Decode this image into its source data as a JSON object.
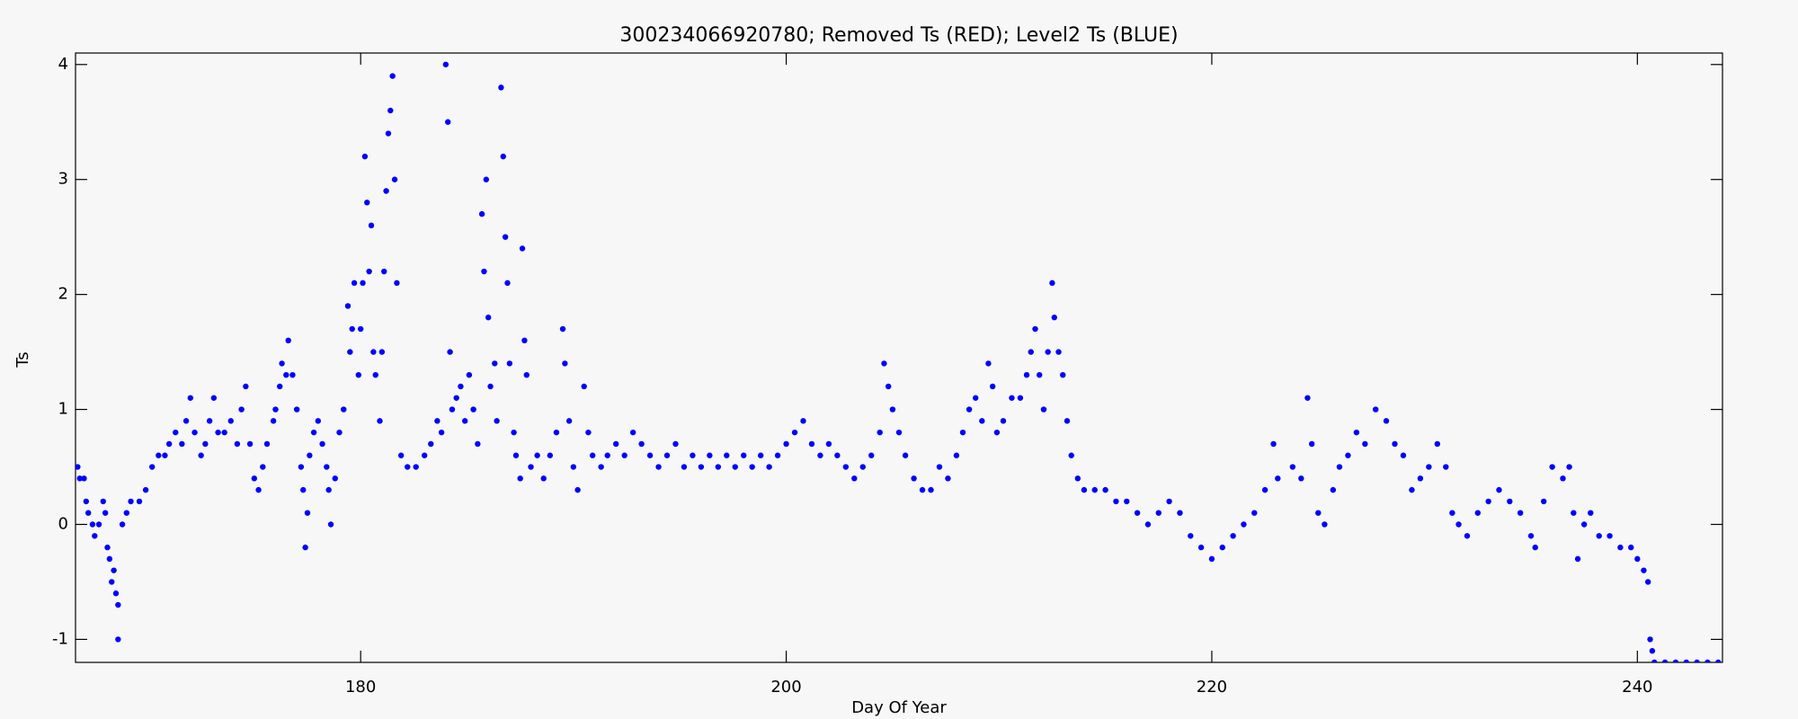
{
  "chart_data": {
    "type": "scatter",
    "title": "300234066920780; Removed Ts (RED); Level2 Ts (BLUE)",
    "x_label": "Day Of Year",
    "y_label": "Ts",
    "color": "#0000ff",
    "xlim": [
      166.6,
      244
    ],
    "ylim": [
      -1.2,
      4.1
    ],
    "xticks": [
      180,
      200,
      220,
      240
    ],
    "yticks": [
      -1,
      0,
      1,
      2,
      3,
      4
    ],
    "x": [
      166.7,
      166.8,
      167.0,
      167.1,
      167.2,
      167.4,
      167.5,
      167.7,
      167.9,
      168.0,
      168.1,
      168.2,
      168.3,
      168.4,
      168.5,
      168.6,
      168.6,
      168.8,
      169.0,
      169.2,
      169.6,
      169.9,
      170.2,
      170.5,
      170.8,
      171.0,
      171.3,
      171.6,
      171.8,
      172.0,
      172.2,
      172.5,
      172.7,
      172.9,
      173.1,
      173.3,
      173.6,
      173.9,
      174.2,
      174.4,
      174.6,
      174.8,
      175.0,
      175.2,
      175.4,
      175.6,
      175.9,
      176.0,
      176.2,
      176.3,
      176.5,
      176.6,
      176.8,
      177.0,
      177.2,
      177.3,
      177.4,
      177.5,
      177.6,
      177.8,
      178.0,
      178.2,
      178.4,
      178.5,
      178.6,
      178.8,
      179.0,
      179.2,
      179.4,
      179.5,
      179.6,
      179.7,
      179.9,
      180.0,
      180.1,
      180.2,
      180.3,
      180.4,
      180.5,
      180.6,
      180.7,
      180.9,
      181.0,
      181.1,
      181.2,
      181.3,
      181.4,
      181.5,
      181.6,
      181.7,
      181.9,
      182.2,
      182.6,
      183.0,
      183.3,
      183.6,
      183.8,
      184.0,
      184.1,
      184.2,
      184.3,
      184.5,
      184.7,
      184.9,
      185.1,
      185.3,
      185.5,
      185.7,
      185.8,
      185.9,
      186.0,
      186.1,
      186.3,
      186.4,
      186.6,
      186.7,
      186.8,
      186.9,
      187.0,
      187.2,
      187.3,
      187.5,
      187.6,
      187.7,
      187.8,
      188.0,
      188.3,
      188.6,
      188.9,
      189.2,
      189.5,
      189.6,
      189.8,
      190.0,
      190.2,
      190.5,
      190.7,
      190.9,
      191.3,
      191.6,
      192.0,
      192.4,
      192.8,
      193.2,
      193.6,
      194.0,
      194.4,
      194.8,
      195.2,
      195.6,
      196.0,
      196.4,
      196.8,
      197.2,
      197.6,
      198.0,
      198.4,
      198.8,
      199.2,
      199.6,
      200.0,
      200.4,
      200.8,
      201.2,
      201.6,
      202.0,
      202.4,
      202.8,
      203.2,
      203.6,
      204.0,
      204.4,
      204.6,
      204.8,
      205.0,
      205.3,
      205.6,
      206.0,
      206.4,
      206.8,
      207.2,
      207.6,
      208.0,
      208.3,
      208.6,
      208.9,
      209.2,
      209.5,
      209.7,
      209.9,
      210.2,
      210.6,
      211.0,
      211.3,
      211.5,
      211.7,
      211.9,
      212.1,
      212.3,
      212.5,
      212.6,
      212.8,
      213.0,
      213.2,
      213.4,
      213.7,
      214.0,
      214.5,
      215.0,
      215.5,
      216.0,
      216.5,
      217.0,
      217.5,
      218.0,
      218.5,
      219.0,
      219.5,
      220.0,
      220.5,
      221.0,
      221.5,
      222.0,
      222.5,
      222.9,
      223.1,
      223.8,
      224.2,
      224.5,
      224.7,
      225.0,
      225.3,
      225.7,
      226.0,
      226.4,
      226.8,
      227.2,
      227.7,
      228.2,
      228.6,
      229.0,
      229.4,
      229.8,
      230.2,
      230.6,
      231.0,
      231.3,
      231.6,
      232.0,
      232.5,
      233.0,
      233.5,
      234.0,
      234.5,
      235.0,
      235.2,
      235.6,
      236.0,
      236.5,
      236.8,
      237.0,
      237.2,
      237.5,
      237.8,
      238.2,
      238.7,
      239.2,
      239.7,
      240.0,
      240.3,
      240.5,
      240.6,
      240.7,
      240.8,
      241.3,
      241.8,
      242.3,
      242.8,
      243.3,
      243.8
    ],
    "values": [
      0.5,
      0.4,
      0.4,
      0.2,
      0.1,
      0.0,
      -0.1,
      0.0,
      0.2,
      0.1,
      -0.2,
      -0.3,
      -0.5,
      -0.4,
      -0.6,
      -0.7,
      -1.0,
      0.0,
      0.1,
      0.2,
      0.2,
      0.3,
      0.5,
      0.6,
      0.6,
      0.7,
      0.8,
      0.7,
      0.9,
      1.1,
      0.8,
      0.6,
      0.7,
      0.9,
      1.1,
      0.8,
      0.8,
      0.9,
      0.7,
      1.0,
      1.2,
      0.7,
      0.4,
      0.3,
      0.5,
      0.7,
      0.9,
      1.0,
      1.2,
      1.4,
      1.3,
      1.6,
      1.3,
      1.0,
      0.5,
      0.3,
      -0.2,
      0.1,
      0.6,
      0.8,
      0.9,
      0.7,
      0.5,
      0.3,
      0.0,
      0.4,
      0.8,
      1.0,
      1.9,
      1.5,
      1.7,
      2.1,
      1.3,
      1.7,
      2.1,
      3.2,
      2.8,
      2.2,
      2.6,
      1.5,
      1.3,
      0.9,
      1.5,
      2.2,
      2.9,
      3.4,
      3.6,
      3.9,
      3.0,
      2.1,
      0.6,
      0.5,
      0.5,
      0.6,
      0.7,
      0.9,
      0.8,
      4.0,
      3.5,
      1.5,
      1.0,
      1.1,
      1.2,
      0.9,
      1.3,
      1.0,
      0.7,
      2.7,
      2.2,
      3.0,
      1.8,
      1.2,
      1.4,
      0.9,
      3.8,
      3.2,
      2.5,
      2.1,
      1.4,
      0.8,
      0.6,
      0.4,
      2.4,
      1.6,
      1.3,
      0.5,
      0.6,
      0.4,
      0.6,
      0.8,
      1.7,
      1.4,
      0.9,
      0.5,
      0.3,
      1.2,
      0.8,
      0.6,
      0.5,
      0.6,
      0.7,
      0.6,
      0.8,
      0.7,
      0.6,
      0.5,
      0.6,
      0.7,
      0.5,
      0.6,
      0.5,
      0.6,
      0.5,
      0.6,
      0.5,
      0.6,
      0.5,
      0.6,
      0.5,
      0.6,
      0.7,
      0.8,
      0.9,
      0.7,
      0.6,
      0.7,
      0.6,
      0.5,
      0.4,
      0.5,
      0.6,
      0.8,
      1.4,
      1.2,
      1.0,
      0.8,
      0.6,
      0.4,
      0.3,
      0.3,
      0.5,
      0.4,
      0.6,
      0.8,
      1.0,
      1.1,
      0.9,
      1.4,
      1.2,
      0.8,
      0.9,
      1.1,
      1.1,
      1.3,
      1.5,
      1.7,
      1.3,
      1.0,
      1.5,
      2.1,
      1.8,
      1.5,
      1.3,
      0.9,
      0.6,
      0.4,
      0.3,
      0.3,
      0.3,
      0.2,
      0.2,
      0.1,
      0.0,
      0.1,
      0.2,
      0.1,
      -0.1,
      -0.2,
      -0.3,
      -0.2,
      -0.1,
      0.0,
      0.1,
      0.3,
      0.7,
      0.4,
      0.5,
      0.4,
      1.1,
      0.7,
      0.1,
      0.0,
      0.3,
      0.5,
      0.6,
      0.8,
      0.7,
      1.0,
      0.9,
      0.7,
      0.6,
      0.3,
      0.4,
      0.5,
      0.7,
      0.5,
      0.1,
      0.0,
      -0.1,
      0.1,
      0.2,
      0.3,
      0.2,
      0.1,
      -0.1,
      -0.2,
      0.2,
      0.5,
      0.4,
      0.5,
      0.1,
      -0.3,
      0.0,
      0.1,
      -0.1,
      -0.1,
      -0.2,
      -0.2,
      -0.3,
      -0.4,
      -0.5,
      -1.0,
      -1.1,
      -1.2,
      -1.2,
      -1.2,
      -1.2,
      -1.2,
      -1.2,
      -1.2
    ]
  }
}
